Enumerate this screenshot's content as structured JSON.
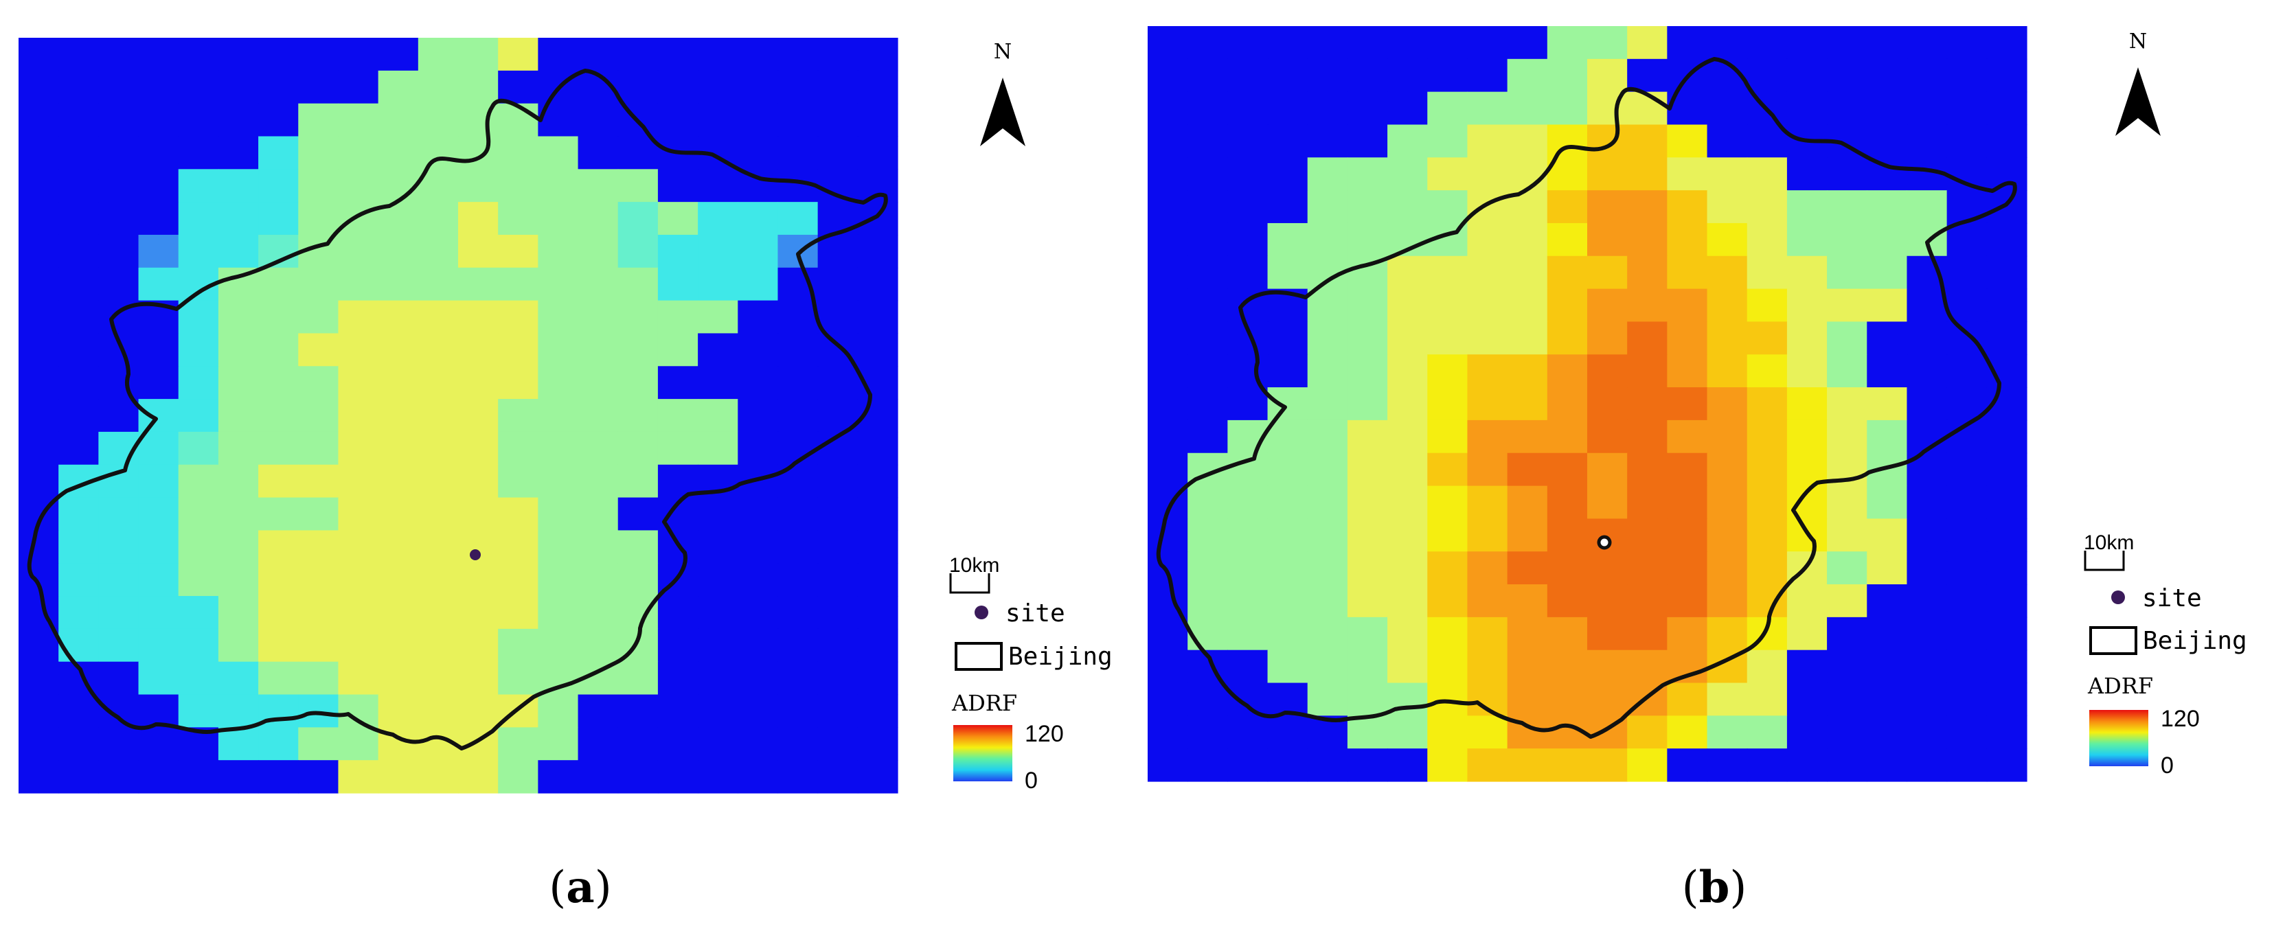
{
  "panels": [
    {
      "id": "a",
      "caption": "a",
      "north_label": "N",
      "scale_label": "10km",
      "legend": {
        "site_label": "site",
        "boundary_label": "Beijing",
        "color_title": "ADRF",
        "ramp_max": "120",
        "ramp_min": "0"
      },
      "levels": [
        "0000000000889000000000",
        "0000000008880000000000",
        "0000000888888000000000",
        "0000006888888800000000",
        "0000666888888888000000",
        "0000666888898887866600",
        "0002667888899887666200",
        "0006688888888888666000",
        "0000688899999888880000",
        "0000688999999888800000",
        "0000688899999888000000",
        "0006688899998888880000",
        "0066788899998888880000",
        "0666889999998888000000",
        "0666888899999880000000",
        "0666889999999888000000",
        "0666889999999888000000",
        "0666689999999888000000",
        "0666689999998888000000",
        "0006668899998888000000",
        "0000666689999800000000",
        "0000066889998800000000",
        "0000000099998000000000"
      ]
    },
    {
      "id": "b",
      "caption": "b",
      "north_label": "N",
      "scale_label": "10km",
      "legend": {
        "site_label": "site",
        "boundary_label": "Beijing",
        "color_title": "ADRF",
        "ramp_max": "120",
        "ramp_min": "0"
      },
      "levels": [
        "0000000000889000000000",
        "0000000008890000000000",
        "0000000888899000000000",
        "0000008899ABBA00000000",
        "0000888999ABB999000000",
        "0000888899BCCB99888800",
        "0008888899ACCBA9888800",
        "0008889999BBCBB9988000",
        "0000889999BCCCBA999000",
        "0000889999BCDCBB980000",
        "0000889ABBCDDCBA980000",
        "0008889ABBCDDDCBA99000",
        "0088899ACCCDDCCBA98000",
        "0888899BCDDCDDCBA98000",
        "0888899ABCDCDDCBA98000",
        "0888899ABCDDDDCBA99000",
        "0888899BCDDDDDCB989000",
        "0888899BCCDDDDCB990000",
        "0888889ABCCDDCBA900000",
        "0008889ABCCCCCB9000000",
        "0000888ABCCCCB99000000",
        "0000088AACCCBA88000000",
        "0000000ABBBBA000000000"
      ]
    }
  ],
  "palette": {
    "0": "#0a0af0",
    "2": "#3a8cf0",
    "6": "#3fe8e8",
    "7": "#66f0cc",
    "8": "#9cf59c",
    "9": "#e8f25a",
    "A": "#f5ee10",
    "B": "#f8c810",
    "C": "#f89a18",
    "D": "#f06e12"
  },
  "colors": {
    "site_dot": "#3a1a5a",
    "boundary": "#111111"
  }
}
